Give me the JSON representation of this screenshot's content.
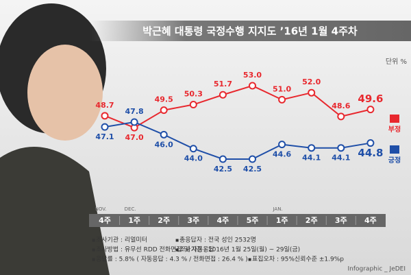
{
  "chart_data": {
    "type": "line",
    "title": "박근혜 대통령 국정수행 지지도 ’16년 1월 4주차",
    "unit": "단위 %",
    "categories": [
      "4주",
      "1주",
      "2주",
      "3주",
      "4주",
      "5주",
      "1주",
      "2주",
      "3주",
      "4주"
    ],
    "months": [
      "NOV.",
      "DEC.",
      null,
      null,
      null,
      null,
      "JAN.",
      null,
      null,
      null
    ],
    "series": [
      {
        "name": "부정",
        "color": "#e8282e",
        "values": [
          48.7,
          47.0,
          49.5,
          50.3,
          51.7,
          53.0,
          51.0,
          52.0,
          48.6,
          49.6
        ],
        "value_labels": [
          "48.7",
          "47.0",
          "49.5",
          "50.3",
          "51.7",
          "53.0",
          "51.0",
          "52.0",
          "48.6",
          "49.6"
        ]
      },
      {
        "name": "긍정",
        "color": "#1f4fa8",
        "values": [
          47.1,
          47.8,
          46.0,
          44.0,
          42.5,
          42.5,
          44.6,
          44.1,
          44.1,
          44.8
        ],
        "value_labels": [
          "47.1",
          "47.8",
          "46.0",
          "44.0",
          "42.5",
          "42.5",
          "44.6",
          "44.1",
          "44.1",
          "44.8"
        ]
      }
    ],
    "notes": [
      "조사기관 : 리얼미터",
      "총응답자 : 전국 성인 2532명",
      "조사방법 : 유무선 RDD 전화면접 및 자동응답",
      "조사기간 : 2016년 1월 25일(월) ~ 29일(금)",
      "응답률 : 5.8% ( 자동응답 : 4.3 % / 전화면접 : 26.4 % )",
      "표집오차 : 95%신뢰수준 ±1.9%p"
    ],
    "credit": "Infographic _ JeDEI"
  }
}
